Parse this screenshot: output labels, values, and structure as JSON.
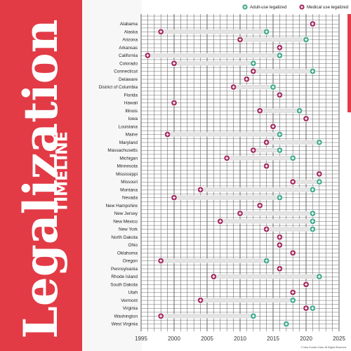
{
  "title": "Legalization",
  "subtitle": "TIMELINE",
  "copyright": "© New Frontier Data. All Rights Reserved.",
  "colors": {
    "adult": "#3fa98c",
    "medical": "#a3285f",
    "accent": "#e23b46",
    "bar": "#e3e3e3"
  },
  "legend": [
    {
      "label": "Adult-use legalized",
      "series": "adult",
      "color": "#3fa98c"
    },
    {
      "label": "Medical use legalized",
      "series": "medical",
      "color": "#a3285f"
    }
  ],
  "chart_data": {
    "type": "scatter",
    "xlim": [
      1995,
      2025
    ],
    "xticks": [
      1995,
      2000,
      2005,
      2010,
      2015,
      2020,
      2025
    ],
    "grid": true,
    "legend_position": "top-right",
    "series": [
      {
        "name": "Adult-use legalized",
        "key": "adult"
      },
      {
        "name": "Medical use legalized",
        "key": "medical"
      }
    ],
    "states": [
      {
        "name": "Alabama",
        "medical": 2021,
        "adult": null
      },
      {
        "name": "Alaska",
        "medical": 1998,
        "adult": 2014
      },
      {
        "name": "Arizona",
        "medical": 2010,
        "adult": 2020
      },
      {
        "name": "Arkansas",
        "medical": 2016,
        "adult": null
      },
      {
        "name": "California",
        "medical": 1996,
        "adult": 2016
      },
      {
        "name": "Colorado",
        "medical": 2000,
        "adult": 2012
      },
      {
        "name": "Connecticut",
        "medical": 2012,
        "adult": 2021
      },
      {
        "name": "Delaware",
        "medical": 2011,
        "adult": null
      },
      {
        "name": "District of Columbia",
        "medical": 2009,
        "adult": 2015
      },
      {
        "name": "Florida",
        "medical": 2016,
        "adult": null
      },
      {
        "name": "Hawaii",
        "medical": 2000,
        "adult": null
      },
      {
        "name": "Illinois",
        "medical": 2013,
        "adult": 2019
      },
      {
        "name": "Iowa",
        "medical": 2020,
        "adult": null
      },
      {
        "name": "Louisiana",
        "medical": 2015,
        "adult": null
      },
      {
        "name": "Maine",
        "medical": 1999,
        "adult": 2016
      },
      {
        "name": "Maryland",
        "medical": 2014,
        "adult": 2022
      },
      {
        "name": "Massachusetts",
        "medical": 2012,
        "adult": 2016
      },
      {
        "name": "Michigan",
        "medical": 2008,
        "adult": 2018
      },
      {
        "name": "Minnesota",
        "medical": 2014,
        "adult": null
      },
      {
        "name": "Mississippi",
        "medical": 2022,
        "adult": null
      },
      {
        "name": "Missouri",
        "medical": 2018,
        "adult": 2022
      },
      {
        "name": "Montana",
        "medical": 2004,
        "adult": 2021
      },
      {
        "name": "Nevada",
        "medical": 2000,
        "adult": 2016
      },
      {
        "name": "New Hampshire",
        "medical": 2013,
        "adult": null
      },
      {
        "name": "New Jersey",
        "medical": 2010,
        "adult": 2021
      },
      {
        "name": "New Mexico",
        "medical": 2007,
        "adult": 2021
      },
      {
        "name": "New York",
        "medical": 2014,
        "adult": 2021
      },
      {
        "name": "North Dakota",
        "medical": 2016,
        "adult": null
      },
      {
        "name": "Ohio",
        "medical": 2016,
        "adult": null
      },
      {
        "name": "Oklahoma",
        "medical": 2018,
        "adult": null
      },
      {
        "name": "Oregon",
        "medical": 1998,
        "adult": 2014
      },
      {
        "name": "Pennsylvania",
        "medical": 2016,
        "adult": null
      },
      {
        "name": "Rhode Island",
        "medical": 2006,
        "adult": 2022
      },
      {
        "name": "South Dakota",
        "medical": 2020,
        "adult": null
      },
      {
        "name": "Utah",
        "medical": 2018,
        "adult": null
      },
      {
        "name": "Vermont",
        "medical": 2004,
        "adult": 2018
      },
      {
        "name": "Virginia",
        "medical": 2020,
        "adult": 2021
      },
      {
        "name": "Washington",
        "medical": 1998,
        "adult": 2012
      },
      {
        "name": "West Virginia",
        "medical": null,
        "adult": 2017
      }
    ]
  }
}
